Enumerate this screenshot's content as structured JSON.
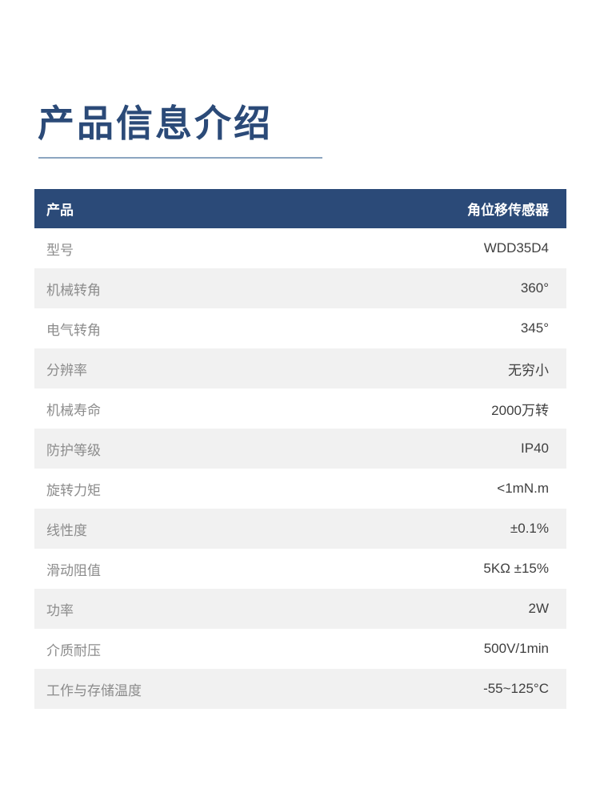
{
  "title": "产品信息介绍",
  "colors": {
    "accent": "#2b4a78",
    "header_bg": "#2a4c7c",
    "underline": "#8ca5c0",
    "row_alt_bg": "#f1f1f1",
    "label_text": "#8c8c8c",
    "value_text": "#3f3f3f"
  },
  "table": {
    "header": {
      "label": "产品",
      "value": "角位移传感器"
    },
    "rows": [
      {
        "label": "型号",
        "value": "WDD35D4"
      },
      {
        "label": "机械转角",
        "value": "360°"
      },
      {
        "label": "电气转角",
        "value": "345°"
      },
      {
        "label": "分辨率",
        "value": "无穷小"
      },
      {
        "label": "机械寿命",
        "value": "2000万转"
      },
      {
        "label": "防护等级",
        "value": "IP40"
      },
      {
        "label": "旋转力矩",
        "value": "<1mN.m"
      },
      {
        "label": "线性度",
        "value": "±0.1%"
      },
      {
        "label": "滑动阻值",
        "value": "5KΩ ±15%"
      },
      {
        "label": "功率",
        "value": "2W"
      },
      {
        "label": "介质耐压",
        "value": "500V/1min"
      },
      {
        "label": "工作与存储温度",
        "value": "-55~125°C"
      }
    ]
  }
}
